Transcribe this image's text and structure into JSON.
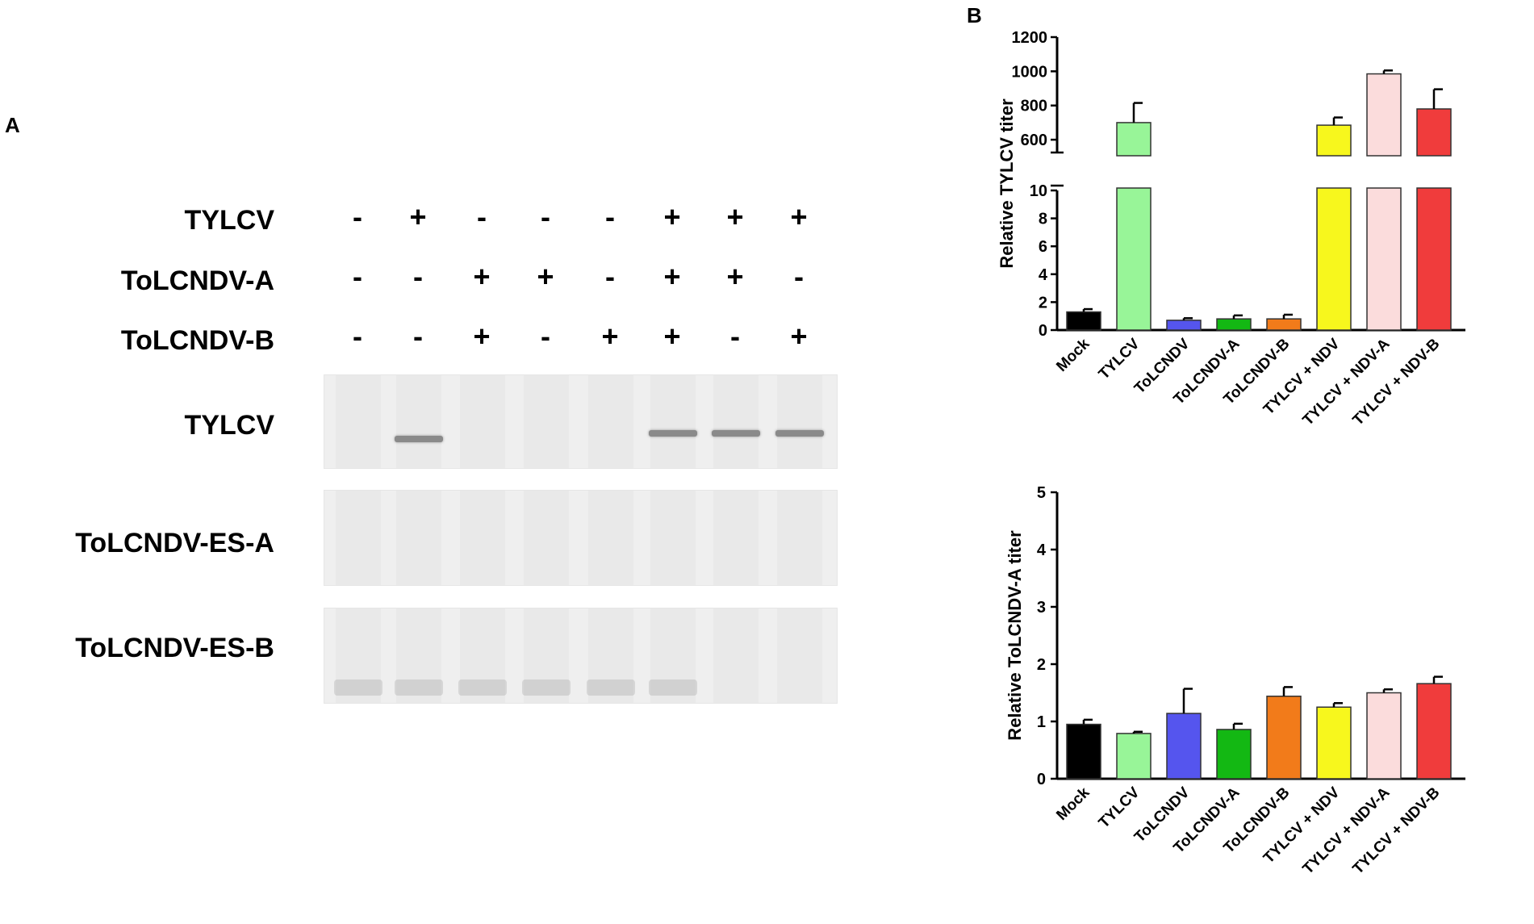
{
  "panel_a": {
    "label": "A",
    "condition_rows": [
      {
        "label": "TYLCV",
        "signs": [
          "-",
          "+",
          "-",
          "-",
          "-",
          "+",
          "+",
          "+"
        ]
      },
      {
        "label": "ToLCNDV-A",
        "signs": [
          "-",
          "-",
          "+",
          "+",
          "-",
          "+",
          "+",
          "-"
        ]
      },
      {
        "label": "ToLCNDV-B",
        "signs": [
          "-",
          "-",
          "+",
          "-",
          "+",
          "+",
          "-",
          "+"
        ]
      }
    ],
    "gel_rows": [
      {
        "label": "TYLCV",
        "bands": [
          false,
          true,
          false,
          false,
          false,
          true,
          true,
          true
        ]
      },
      {
        "label": "ToLCNDV-ES-A",
        "bands": [
          false,
          false,
          false,
          false,
          false,
          false,
          false,
          false
        ]
      },
      {
        "label": "ToLCNDV-ES-B",
        "bands": [
          false,
          false,
          false,
          false,
          false,
          false,
          false,
          false
        ]
      }
    ]
  },
  "panel_b": {
    "label": "B"
  },
  "chart_data": [
    {
      "type": "bar",
      "ylabel": "Relative TYLCV titer",
      "axis_break": true,
      "lower_ylim": [
        0,
        10
      ],
      "upper_ylim": [
        500,
        1200
      ],
      "lower_ticks": [
        "0",
        "2",
        "4",
        "6",
        "8",
        "10"
      ],
      "upper_ticks": [
        "600",
        "800",
        "1000",
        "1200"
      ],
      "categories": [
        "Mock",
        "TYLCV",
        "ToLCNDV",
        "ToLCNDV-A",
        "ToLCNDV-B",
        "TYLCV + NDV",
        "TYLCV + NDV-A",
        "TYLCV + NDV-B"
      ],
      "values": [
        1.3,
        700,
        0.7,
        0.8,
        0.8,
        685,
        985,
        780
      ],
      "errors": [
        0.2,
        115,
        0.15,
        0.25,
        0.3,
        45,
        20,
        115
      ],
      "colors": [
        "#000000",
        "#98f598",
        "#5555ee",
        "#13b813",
        "#f27b1a",
        "#f7f71d",
        "#fbdcdc",
        "#f03c3c"
      ]
    },
    {
      "type": "bar",
      "ylabel": "Relative ToLCNDV-A titer",
      "ylim": [
        0,
        5
      ],
      "ticks": [
        "0",
        "1",
        "2",
        "3",
        "4",
        "5"
      ],
      "categories": [
        "Mock",
        "TYLCV",
        "ToLCNDV",
        "ToLCNDV-A",
        "ToLCNDV-B",
        "TYLCV + NDV",
        "TYLCV + NDV-A",
        "TYLCV + NDV-B"
      ],
      "values": [
        0.95,
        0.79,
        1.14,
        0.86,
        1.44,
        1.25,
        1.5,
        1.66
      ],
      "errors": [
        0.08,
        0.03,
        0.43,
        0.1,
        0.16,
        0.07,
        0.06,
        0.12
      ],
      "colors": [
        "#000000",
        "#98f598",
        "#5555ee",
        "#13b813",
        "#f27b1a",
        "#f7f71d",
        "#fbdcdc",
        "#f03c3c"
      ]
    }
  ]
}
